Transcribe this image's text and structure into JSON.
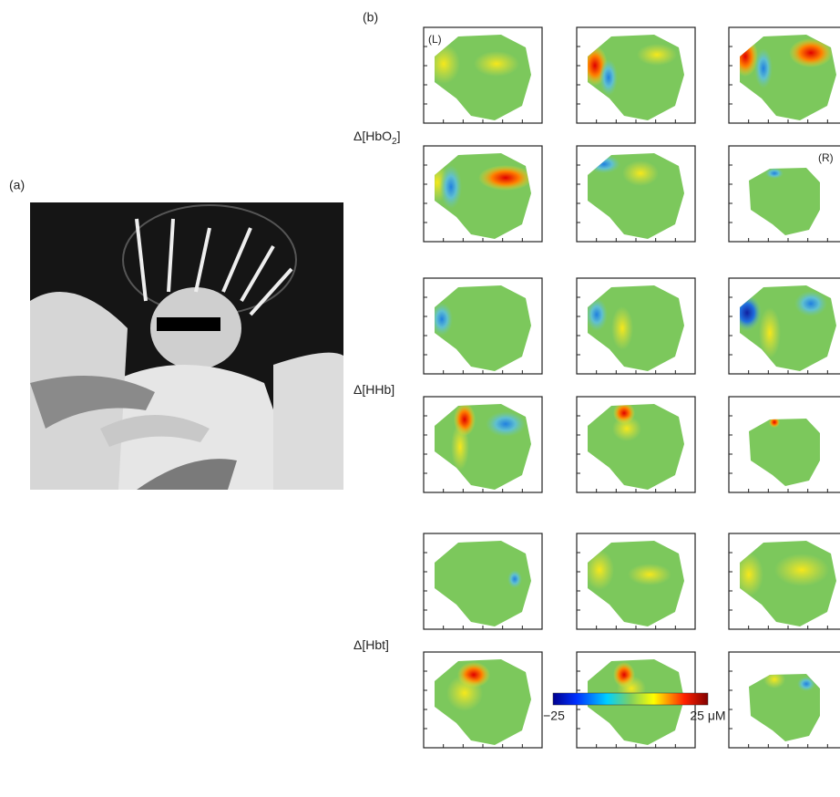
{
  "labels": {
    "panel_a": "(a)",
    "panel_b": "(b)",
    "left": "(L)",
    "right": "(R)"
  },
  "rows": [
    {
      "label": "Δ[HbO",
      "sub": "2",
      "close": "]"
    },
    {
      "label": "Δ[HHb]"
    },
    {
      "label": "Δ[Hbt]"
    }
  ],
  "colorbar": {
    "min_label": "−25",
    "max_label": "25 μM"
  }
}
